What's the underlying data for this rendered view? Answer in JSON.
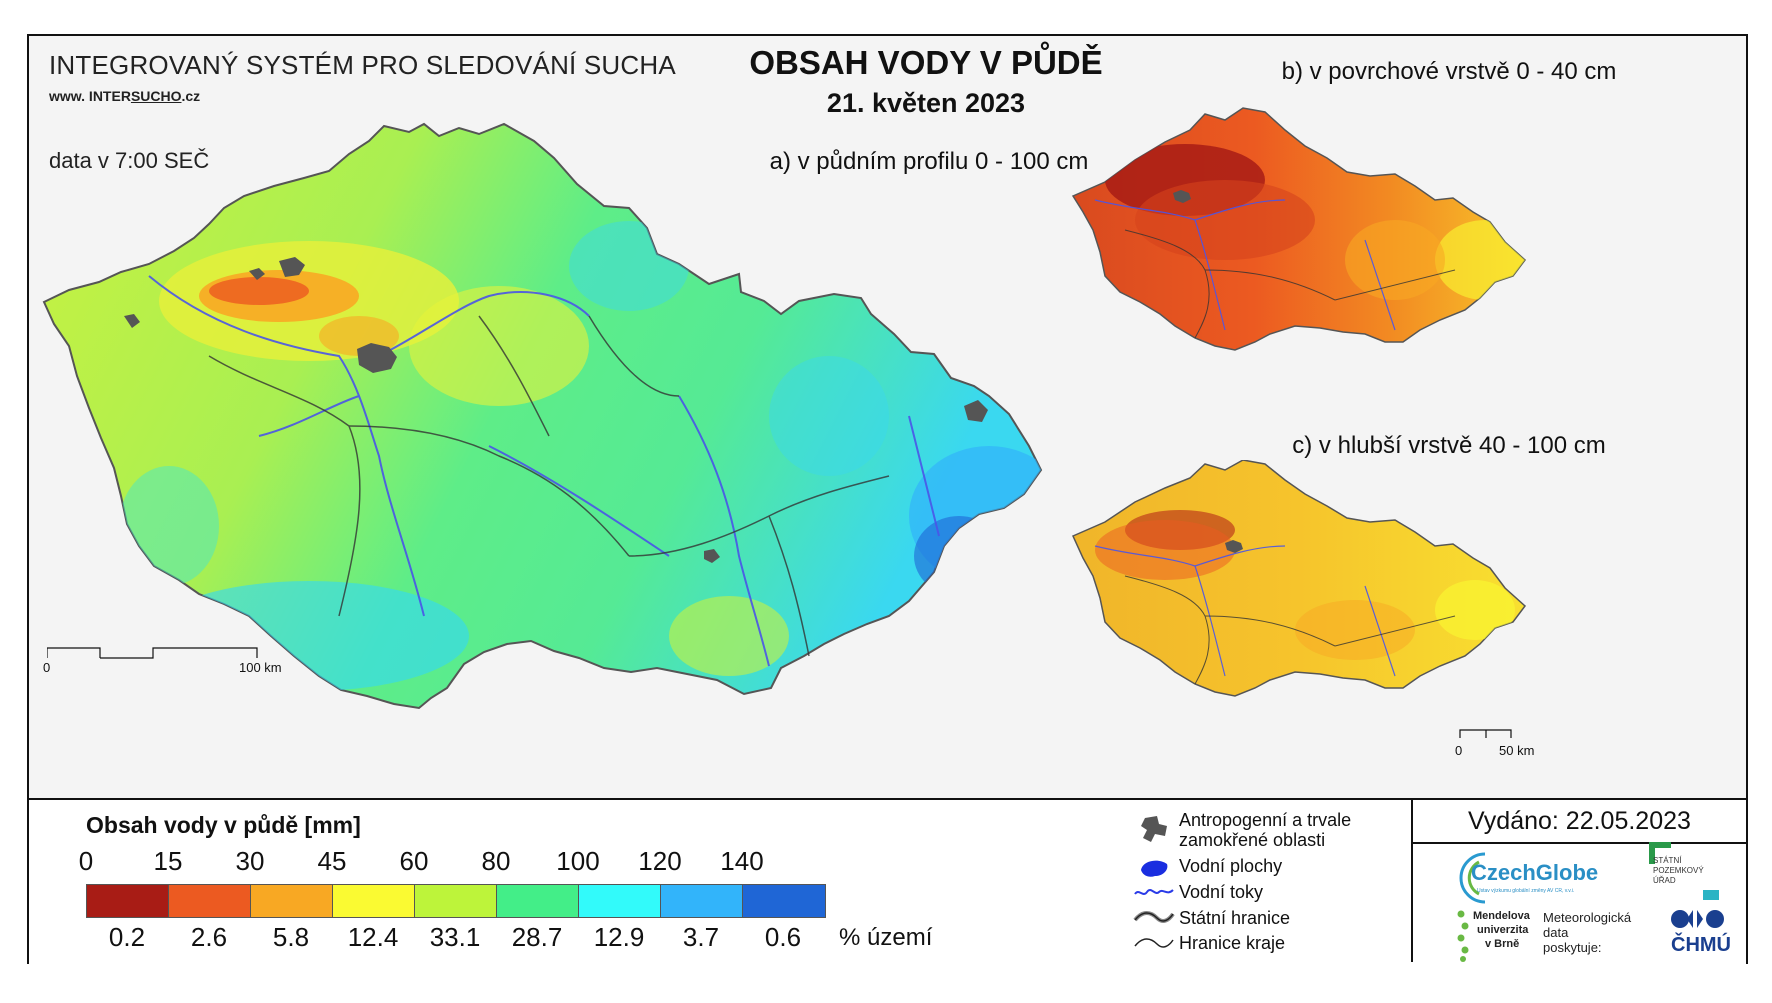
{
  "header": {
    "system_name": "INTEGROVANÝ SYSTÉM PRO SLEDOVÁNÍ SUCHA",
    "website_prefix": "www. INTER",
    "website_brand": "SUCHO",
    "website_suffix": ".cz",
    "data_time": "data v 7:00 SEČ",
    "title": "OBSAH VODY V PŮDĚ",
    "date": "21. květen 2023"
  },
  "panels": {
    "a": "a) v půdním profilu 0 - 100 cm",
    "b": "b) v povrchové vrstvě 0 - 40 cm",
    "c": "c) v hlubší vrstvě 40 - 100 cm"
  },
  "scalebars": {
    "main_start": "0",
    "main_end": "100 km",
    "small_start": "0",
    "small_end": "50 km"
  },
  "legend": {
    "title": "Obsah vody v půdě  [mm]",
    "breaks": [
      "0",
      "15",
      "30",
      "45",
      "60",
      "80",
      "100",
      "120",
      "140"
    ],
    "colors": [
      "#a81c15",
      "#ec5a21",
      "#f8a823",
      "#fafa32",
      "#bdf43a",
      "#43ee88",
      "#32fafa",
      "#32b4fa",
      "#1f66d6"
    ],
    "percentages": [
      "0.2",
      "2.6",
      "5.8",
      "12.4",
      "33.1",
      "28.7",
      "12.9",
      "3.7",
      "0.6"
    ],
    "percent_label": "% území"
  },
  "symbols": {
    "anthropogenic": "Antropogenní a trvale zamokřené oblasti",
    "water_bodies": "Vodní plochy",
    "rivers": "Vodní toky",
    "state_border": "Státní hranice",
    "region_border": "Hranice kraje"
  },
  "issued": "Vydáno: 22.05.2023",
  "logos": {
    "czechglobe": "CzechGlobe",
    "czechglobe_sub": "Ústav výzkumu globální změny AV ČR, v.v.i.",
    "spu_line1": "STÁTNÍ",
    "spu_line2": "POZEMKOVÝ",
    "spu_line3": "ÚŘAD",
    "mendel_line1": "Mendelova",
    "mendel_line2": "univerzita",
    "mendel_line3": "v Brně",
    "met_line1": "Meteorologická",
    "met_line2": "data",
    "met_line3": "poskytuje:",
    "chmu": "ČHMÚ"
  }
}
